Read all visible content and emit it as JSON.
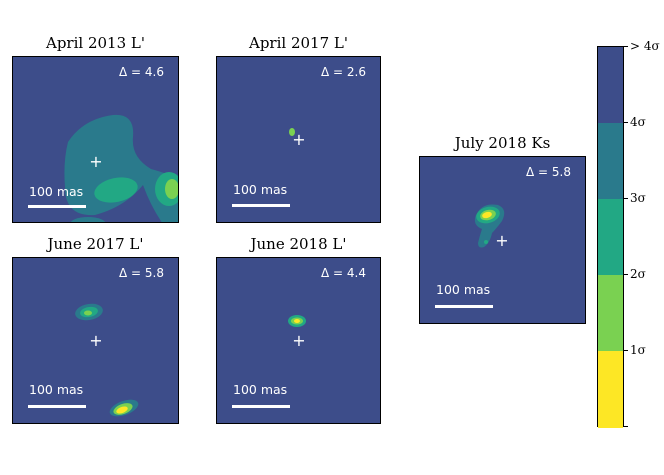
{
  "panels": [
    {
      "title": "April 2013 L'",
      "delta": "Δ = 4.6",
      "scale": "100 mas"
    },
    {
      "title": "April 2017 L'",
      "delta": "Δ = 2.6",
      "scale": "100 mas"
    },
    {
      "title": "June 2017 L'",
      "delta": "Δ = 5.8",
      "scale": "100 mas"
    },
    {
      "title": "June 2018 L'",
      "delta": "Δ = 4.4",
      "scale": "100 mas"
    },
    {
      "title": "July 2018 Ks",
      "delta": "Δ = 5.8",
      "scale": "100 mas"
    }
  ],
  "colorbar": {
    "labels": [
      "> 4σ",
      "4σ",
      "3σ",
      "2σ",
      "1σ"
    ],
    "colors": [
      "#3d4d8a",
      "#2a7a8c",
      "#22a884",
      "#7ad151",
      "#fde725"
    ]
  }
}
